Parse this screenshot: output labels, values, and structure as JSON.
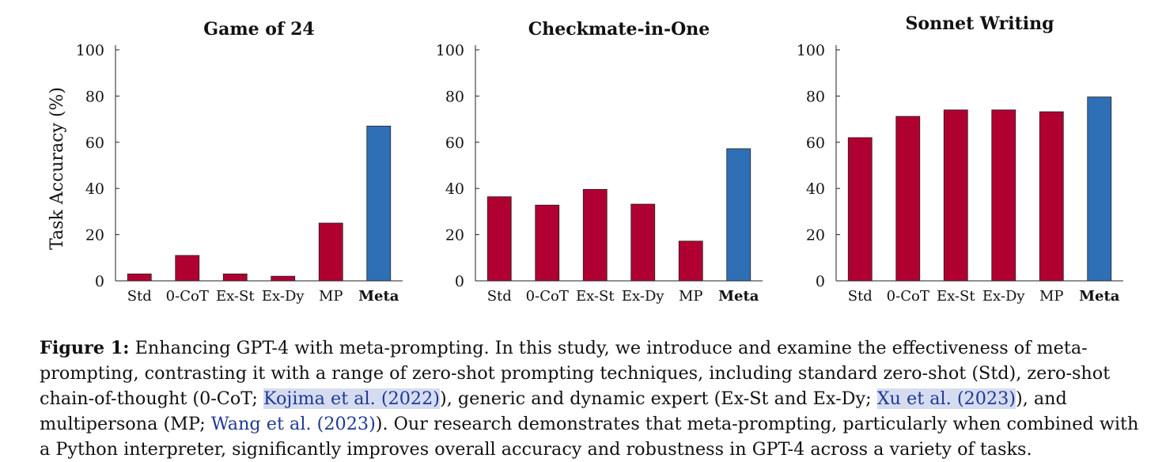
{
  "chart_data": [
    {
      "type": "bar",
      "title": "Game of 24",
      "ylabel": "Task Accuracy (%)",
      "categories": [
        "Std",
        "0-CoT",
        "Ex-St",
        "Ex-Dy",
        "MP",
        "Meta"
      ],
      "values": [
        3,
        11,
        3,
        2,
        25,
        67
      ],
      "ylim": [
        0,
        100
      ],
      "yticks": [
        0,
        20,
        40,
        60,
        80,
        100
      ],
      "highlight_category": "Meta"
    },
    {
      "type": "bar",
      "title": "Checkmate-in-One",
      "ylabel": "",
      "categories": [
        "Std",
        "0-CoT",
        "Ex-St",
        "Ex-Dy",
        "MP",
        "Meta"
      ],
      "values": [
        36.4,
        32.8,
        39.6,
        33.2,
        17.2,
        57.2
      ],
      "ylim": [
        0,
        100
      ],
      "yticks": [
        0,
        20,
        40,
        60,
        80,
        100
      ],
      "highlight_category": "Meta"
    },
    {
      "type": "bar",
      "title": "Sonnet Writing",
      "ylabel": "",
      "categories": [
        "Std",
        "0-CoT",
        "Ex-St",
        "Ex-Dy",
        "MP",
        "Meta"
      ],
      "values": [
        62,
        71.2,
        74,
        74,
        73.2,
        79.6
      ],
      "ylim": [
        0,
        100
      ],
      "yticks": [
        0,
        20,
        40,
        60,
        80,
        100
      ],
      "highlight_category": "Meta"
    }
  ],
  "colors": {
    "bar": "#b00032",
    "highlight": "#2f6fb5",
    "axis": "#222222",
    "text": "#111111"
  },
  "caption": {
    "label": "Figure 1:",
    "segments": [
      {
        "text": " Enhancing GPT-4 with meta-prompting. In this study, we introduce and examine the effectiveness of meta-prompting, contrasting it with a range of zero-shot prompting techniques, including standard zero-shot (Std), zero-shot chain-of-thought (0-CoT; ",
        "type": "plain"
      },
      {
        "text": "Kojima et al. (2022)",
        "type": "cite-hl"
      },
      {
        "text": "), generic and dynamic expert (Ex-St and Ex-Dy; ",
        "type": "plain"
      },
      {
        "text": "Xu et al. (2023)",
        "type": "cite-hl"
      },
      {
        "text": "), and multipersona (MP; ",
        "type": "plain"
      },
      {
        "text": "Wang et al. (2023)",
        "type": "cite"
      },
      {
        "text": "). Our research demonstrates that meta-prompting, particularly when combined with a Python interpreter, significantly improves overall accuracy and robustness in GPT-4 across a variety of tasks.",
        "type": "plain"
      }
    ]
  }
}
